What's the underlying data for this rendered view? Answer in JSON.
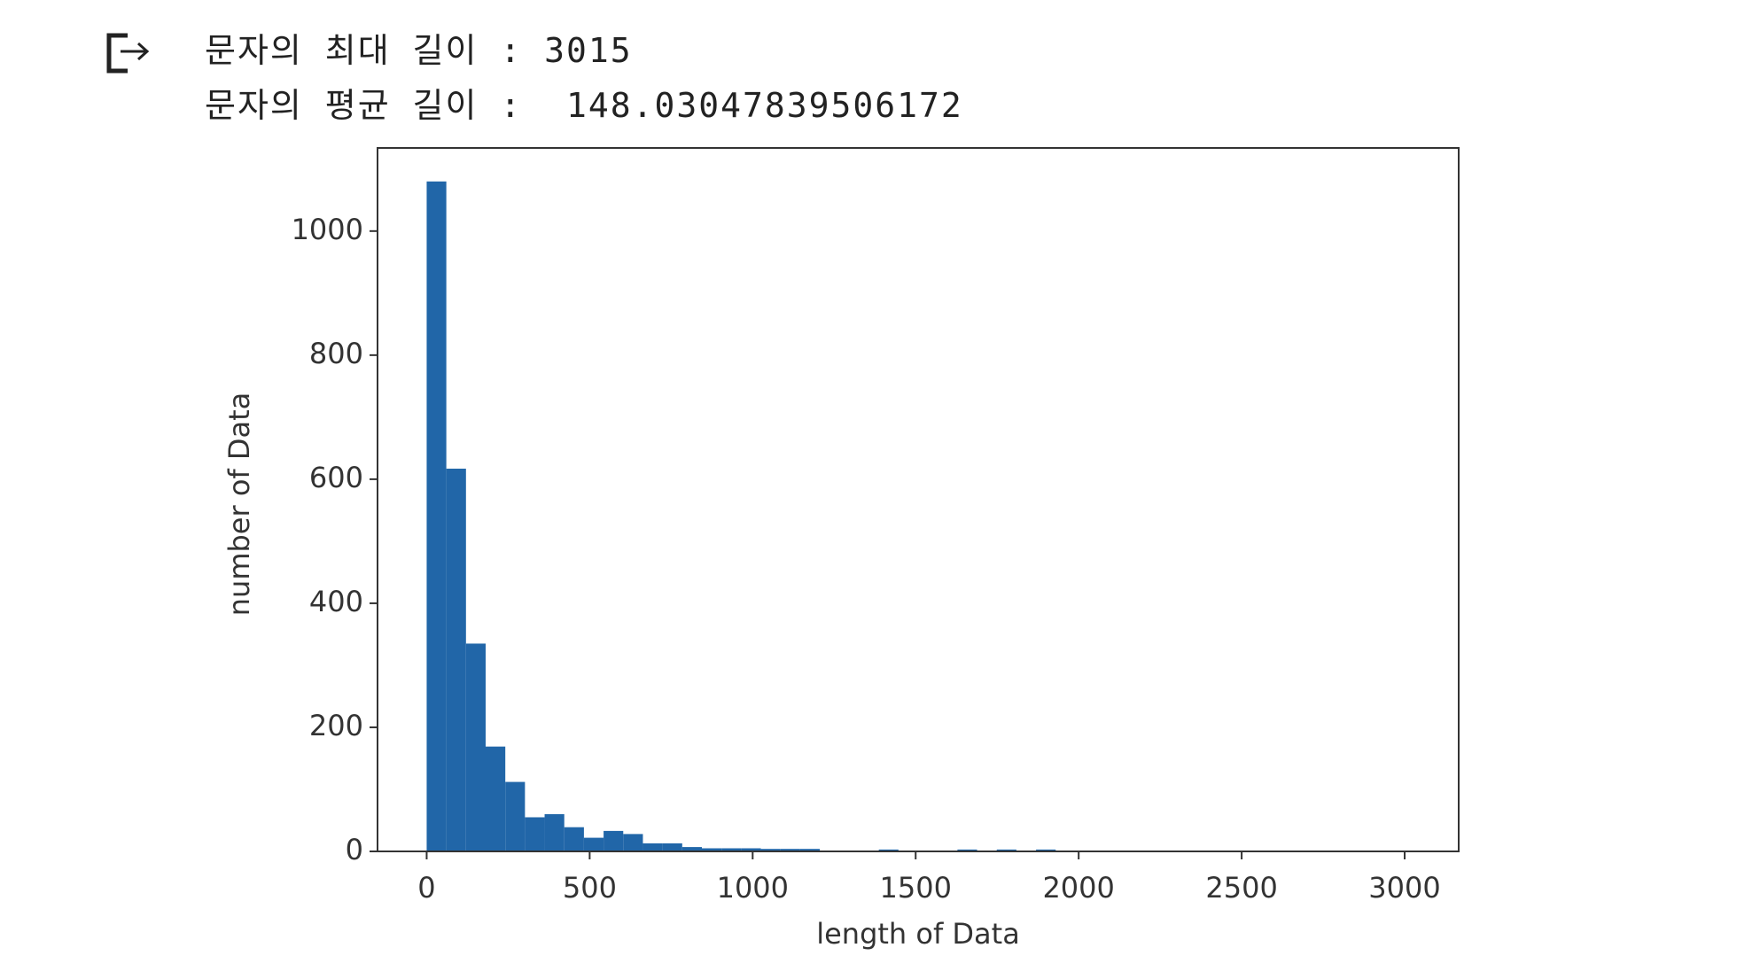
{
  "output": {
    "lines": [
      "문자의 최대 길이 : 3015",
      "문자의 평균 길이 :  148.03047839506172"
    ]
  },
  "chart_data": {
    "type": "histogram",
    "xlabel": "length of Data",
    "ylabel": "number of Data",
    "color": "#2166a8",
    "bins": [
      0,
      60.3,
      120.6,
      180.9,
      241.2,
      301.5,
      361.8,
      422.1,
      482.4,
      542.7,
      603,
      663.3,
      723.6,
      783.9,
      844.2,
      904.5,
      964.8,
      1025.1,
      1085.4,
      1145.7,
      1206,
      1266.3,
      1326.6,
      1386.9,
      1447.2,
      1507.5,
      1567.8,
      1628.1,
      1688.4,
      1748.7,
      1809,
      1869.3,
      1929.6,
      1989.9,
      2050.2,
      2110.5,
      2170.8,
      2231.1,
      2291.4,
      2351.7,
      2412,
      2472.3,
      2532.6,
      2592.9,
      2653.2,
      2713.5,
      2773.8,
      2834.1,
      2894.4,
      2954.7,
      3015
    ],
    "values": [
      1080,
      617,
      335,
      169,
      112,
      55,
      60,
      39,
      22,
      33,
      28,
      13,
      13,
      7,
      5,
      5,
      5,
      4,
      4,
      4,
      0,
      0,
      0,
      3,
      0,
      0,
      0,
      3,
      0,
      3,
      0,
      3,
      0,
      0,
      0,
      0,
      0,
      0,
      0,
      0,
      0,
      0,
      0,
      0,
      0,
      0,
      0,
      0,
      0,
      1
    ],
    "xlim": [
      -150.75,
      3165.75
    ],
    "ylim": [
      0,
      1134
    ],
    "xticks": [
      0,
      500,
      1000,
      1500,
      2000,
      2500,
      3000
    ],
    "yticks": [
      0,
      200,
      400,
      600,
      800,
      1000
    ]
  }
}
